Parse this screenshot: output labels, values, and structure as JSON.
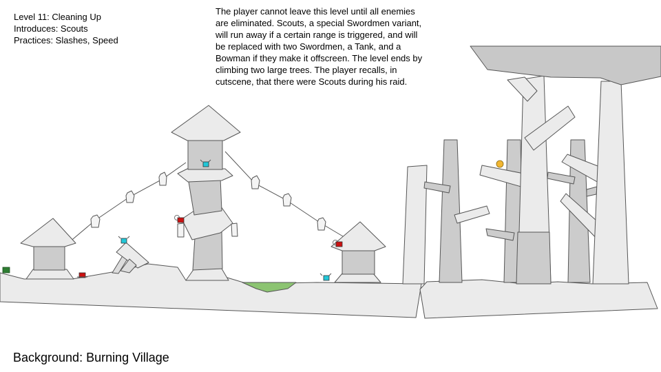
{
  "level_info": {
    "title": "Level 11: Cleaning Up",
    "introduces": "Introduces: Scouts",
    "practices": "Practices: Slashes, Speed"
  },
  "description": "The player cannot leave this level until all enemies are eliminated. Scouts, a special Swordmen variant, will run away if a certain range is triggered, and will be replaced with two Swordmen, a Tank, and a Bowman if they make it offscreen. The level ends by climbing two large trees. The player recalls, in cutscene, that there were Scouts during his raid.",
  "background_note": "Background: Burning Village",
  "colors": {
    "ground_fill": "#ebebeb",
    "tower_dark": "#cccccc",
    "canopy": "#c8c8c8",
    "outline": "#555555",
    "scout": "#22c7d8",
    "enemy_red": "#cc1111",
    "player_green": "#2e7d32",
    "pond": "#8cc472",
    "orb": "#f2b632"
  },
  "icons": {
    "scout": "scout-enemy-icon",
    "swordman": "red-enemy-icon",
    "player": "green-player-icon",
    "orb": "gold-orb-icon"
  }
}
